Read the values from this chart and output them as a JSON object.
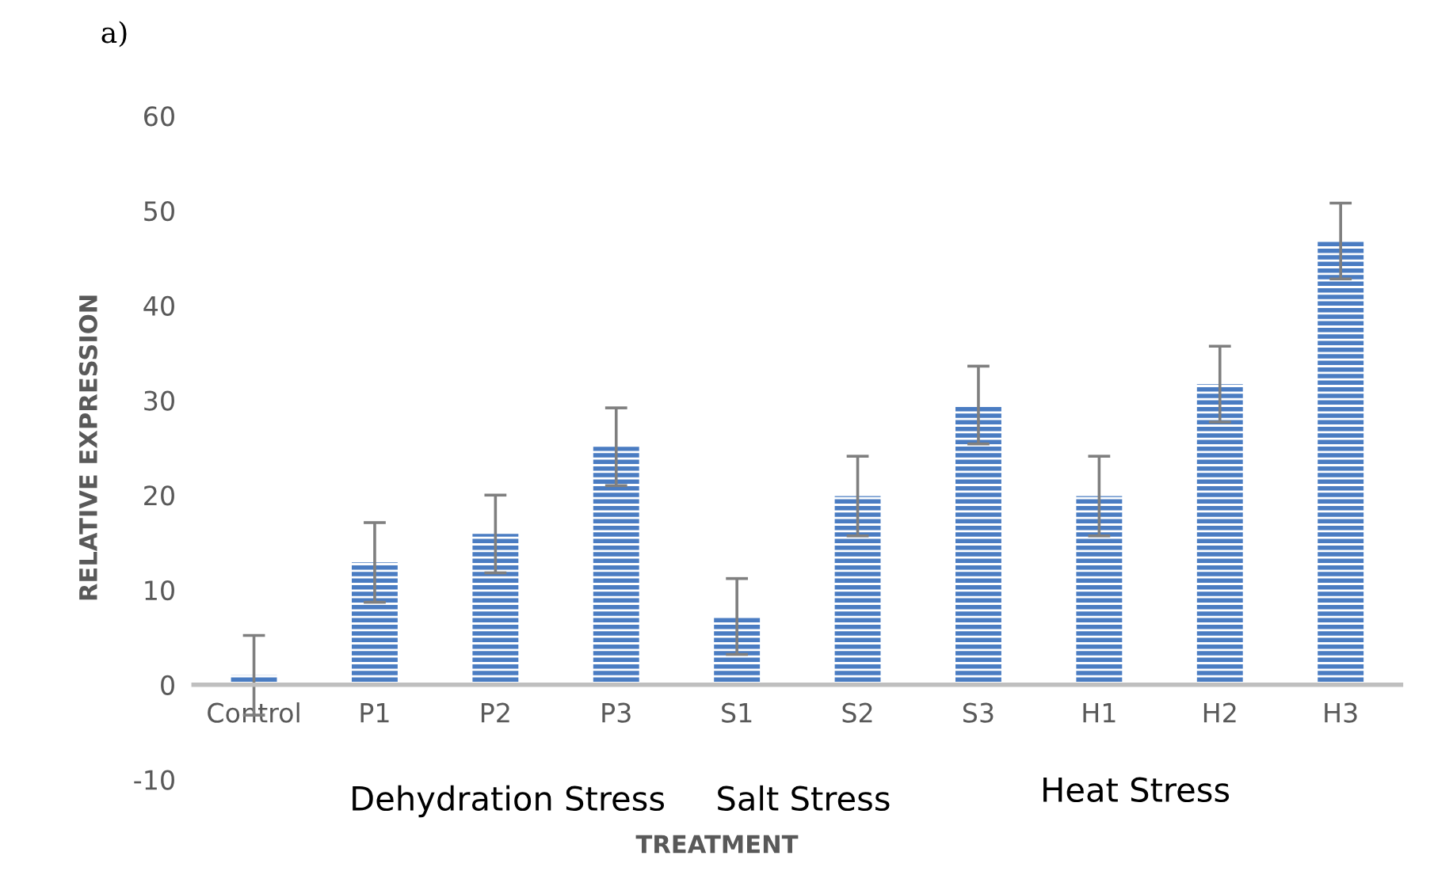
{
  "chart_data": {
    "type": "bar",
    "title": "a)",
    "xlabel": "TREATMENT",
    "ylabel": "RELATIVE EXPRESSION",
    "categories": [
      "Control",
      "P1",
      "P2",
      "P3",
      "S1",
      "S2",
      "S3",
      "H1",
      "H2",
      "H3"
    ],
    "values": [
      1.0,
      12.9,
      15.9,
      25.1,
      7.2,
      19.9,
      29.5,
      19.9,
      31.7,
      46.8
    ],
    "errors": [
      4.2,
      4.2,
      4.1,
      4.1,
      4.0,
      4.2,
      4.1,
      4.2,
      4.0,
      4.0
    ],
    "color": "#4a7cc2",
    "ylim": [
      -10,
      60
    ],
    "yticks": [
      -10,
      0,
      10,
      20,
      30,
      40,
      50,
      60
    ],
    "grid": false,
    "legend": false,
    "annotations": [
      "Dehydration Stress",
      "Salt Stress",
      "Heat Stress"
    ]
  }
}
